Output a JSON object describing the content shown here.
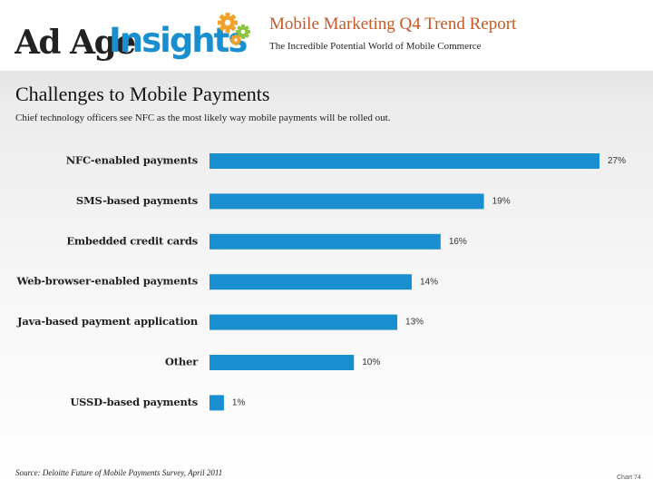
{
  "header": {
    "logo_text_adage": "Ad Age",
    "logo_text_insights": "Insights",
    "report_title": "Mobile Marketing Q4 Trend Report",
    "report_subtitle": "The Incredible Potential World of Mobile Commerce",
    "colors": {
      "title": "#c45a26",
      "logo_blue": "#1a8fd0",
      "gear_orange": "#f2a22a",
      "gear_green": "#8cc63f"
    }
  },
  "slide": {
    "title": "Challenges to Mobile Payments",
    "subtitle": "Chief technology officers see NFC as the most likely way mobile payments will be rolled out."
  },
  "chart_data": {
    "type": "bar",
    "orientation": "horizontal",
    "title": "Challenges to Mobile Payments",
    "xlabel": "",
    "ylabel": "",
    "categories": [
      "NFC-enabled payments",
      "SMS-based payments",
      "Embedded credit cards",
      "Web-browser-enabled payments",
      "Java-based payment application",
      "Other",
      "USSD-based payments"
    ],
    "values": [
      27,
      19,
      16,
      14,
      13,
      10,
      1
    ],
    "value_labels": [
      "27%",
      "19%",
      "16%",
      "14%",
      "13%",
      "10%",
      "1%"
    ],
    "unit": "%",
    "xlim": [
      0,
      27
    ],
    "grid": false,
    "legend": "none",
    "bar_color": "#1a8fd0"
  },
  "footer": {
    "source": "Source: Deloitte Future of Mobile Payments Survey, April 2011",
    "chart_number": "Chart 74"
  }
}
